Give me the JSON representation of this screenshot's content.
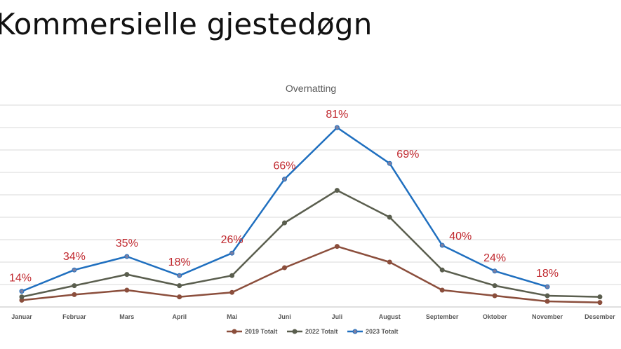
{
  "slide": {
    "title": "Kommersielle gjestedøgn"
  },
  "chart_data": {
    "type": "line",
    "title": "Overnatting",
    "xlabel": "",
    "ylabel": "",
    "ylim": [
      0,
      90
    ],
    "grid": true,
    "legend": "bottom",
    "categories": [
      "Januar",
      "Februar",
      "Mars",
      "April",
      "Mai",
      "Juni",
      "Juli",
      "August",
      "September",
      "Oktober",
      "November",
      "Desember"
    ],
    "series": [
      {
        "name": "2019 Totalt",
        "color": "#8B4E3C",
        "values": [
          3,
          5.5,
          7.5,
          4.5,
          6.5,
          17.5,
          27,
          20,
          7.5,
          5,
          2.5,
          2
        ]
      },
      {
        "name": "2022 Totalt",
        "color": "#5A5E4E",
        "values": [
          4.5,
          9.5,
          14.5,
          9.5,
          14,
          37.5,
          52,
          40,
          16.5,
          9.5,
          5,
          4.5
        ]
      },
      {
        "name": "2023 Totalt",
        "color": "#1F6FBF",
        "values": [
          7,
          16.5,
          22.5,
          14,
          24,
          57,
          80,
          64,
          27.5,
          16,
          9,
          null
        ]
      }
    ],
    "annotations": [
      "14%",
      "34%",
      "35%",
      "18%",
      "26%",
      "66%",
      "81%",
      "69%",
      "40%",
      "24%",
      "18%"
    ]
  }
}
